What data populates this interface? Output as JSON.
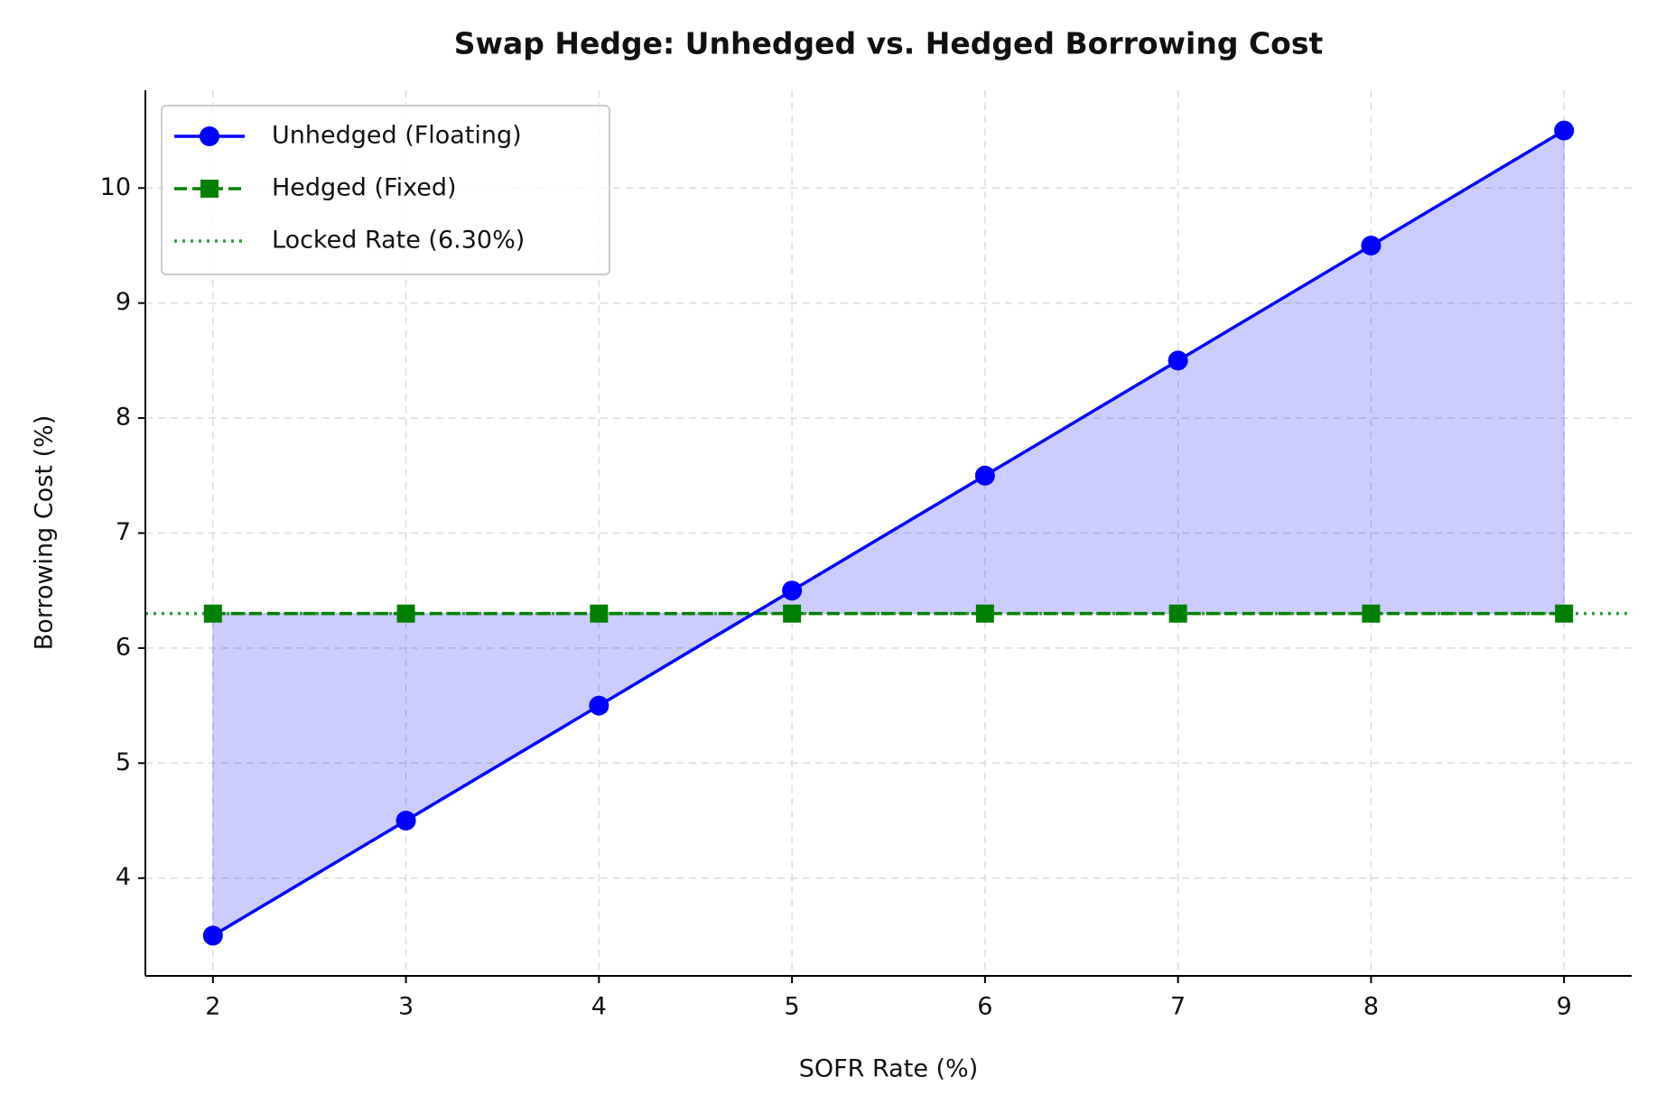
{
  "chart_data": {
    "type": "line",
    "title": "Swap Hedge: Unhedged vs. Hedged Borrowing Cost",
    "xlabel": "SOFR Rate (%)",
    "ylabel": "Borrowing Cost (%)",
    "x": [
      2,
      3,
      4,
      5,
      6,
      7,
      8,
      9
    ],
    "series": [
      {
        "name": "Unhedged (Floating)",
        "color": "#0000ff",
        "marker": "circle",
        "linestyle": "solid",
        "values": [
          3.5,
          4.5,
          5.5,
          6.5,
          7.5,
          8.5,
          9.5,
          10.5
        ]
      },
      {
        "name": "Hedged (Fixed)",
        "color": "#008000",
        "marker": "square",
        "linestyle": "dashed",
        "values": [
          6.3,
          6.3,
          6.3,
          6.3,
          6.3,
          6.3,
          6.3,
          6.3
        ]
      }
    ],
    "hline": {
      "name": "Locked Rate (6.30%)",
      "value": 6.3,
      "color": "#2e9b3a",
      "linestyle": "dotted"
    },
    "fill_between": true,
    "fill_color": "rgba(0,0,255,0.2)",
    "xlim": [
      1.65,
      9.35
    ],
    "ylim": [
      3.15,
      10.85
    ],
    "xticks": [
      2,
      3,
      4,
      5,
      6,
      7,
      8,
      9
    ],
    "yticks": [
      4,
      5,
      6,
      7,
      8,
      9,
      10
    ],
    "grid": true,
    "legend": "upper left"
  }
}
